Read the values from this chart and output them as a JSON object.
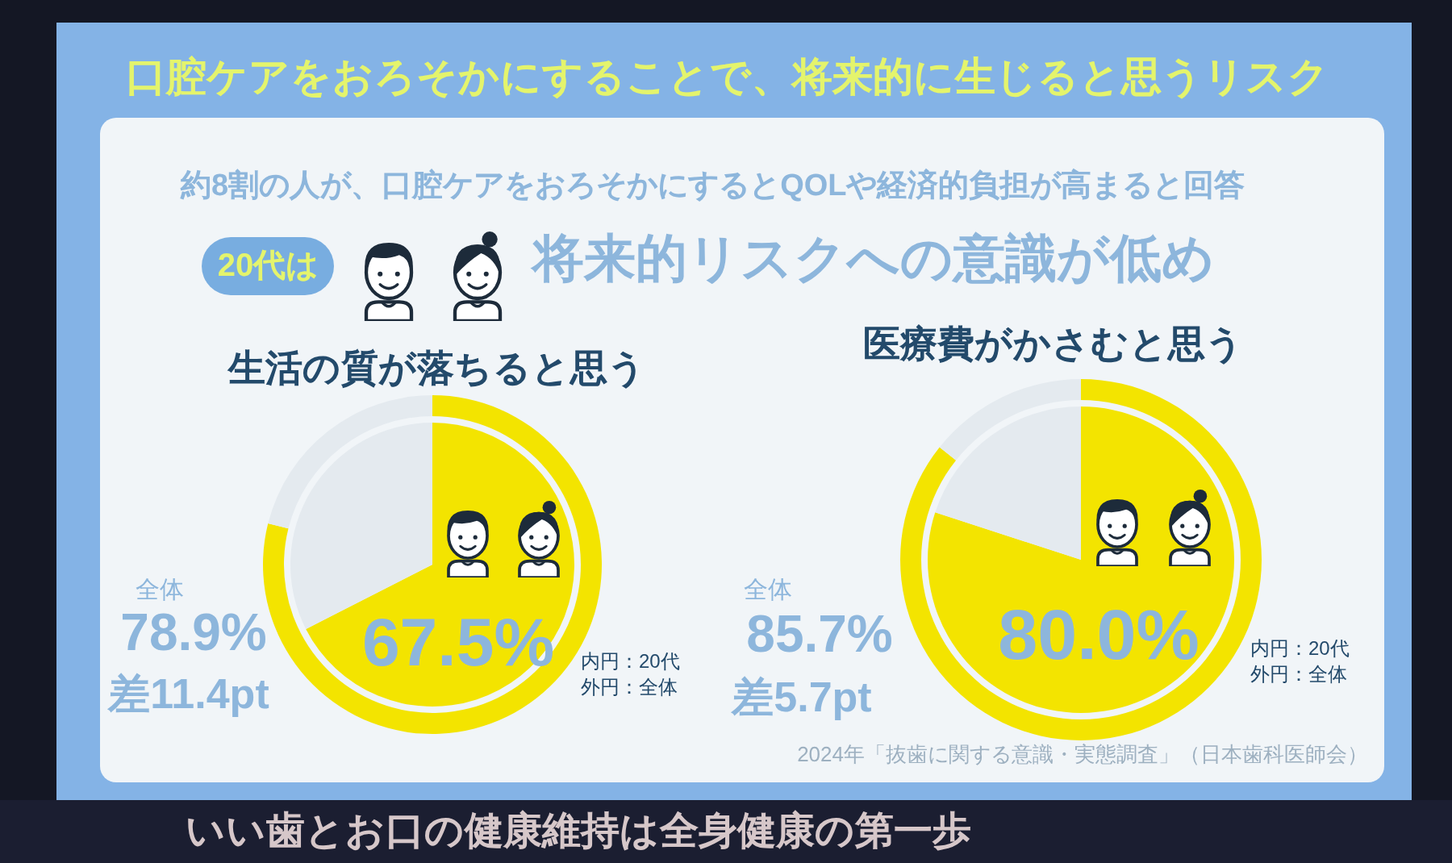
{
  "chart_data": [
    {
      "type": "other",
      "title": "口腔ケアをおろそかにすることで、将来的に生じると思うリスク",
      "subtitle": "約8割の人が、口腔ケアをおろそかにするとQOLや経済的負担が高まると回答",
      "annotations": [
        "20代は",
        "将来的リスクへの意識が低め"
      ]
    },
    {
      "type": "donut",
      "title": "生活の質が落ちると思う",
      "categories": [
        null,
        null
      ],
      "series": [
        {
          "values": [
            67.5,
            32.5
          ],
          "colors": [
            "#f3e400",
            "#e4eaef"
          ],
          "value_labels": [
            "67.5%",
            null
          ]
        },
        {
          "values": [
            78.9,
            21.1
          ],
          "colors": [
            "#f3e400",
            "#e4eaef"
          ],
          "value_labels": [
            "78.9%",
            null
          ]
        }
      ],
      "annotations": [
        "全体",
        "差11.4pt",
        "内円：20代",
        "外円：全体"
      ]
    },
    {
      "type": "donut",
      "title": "医療費がかさむと思う",
      "categories": [
        null,
        null
      ],
      "series": [
        {
          "values": [
            80.0,
            20.0
          ],
          "colors": [
            "#f3e400",
            "#e4eaef"
          ],
          "value_labels": [
            "80.0%",
            null
          ]
        },
        {
          "values": [
            85.7,
            14.3
          ],
          "colors": [
            "#f3e400",
            "#e4eaef"
          ],
          "value_labels": [
            "85.7%",
            null
          ]
        }
      ],
      "annotations": [
        "全体",
        "差5.7pt",
        "内円：20代",
        "外円：全体"
      ]
    },
    {
      "type": "other",
      "annotations": [
        "2024年「抜歯に関する意識・実態調査」（日本歯科医師会）",
        "いい歯とお口の健康維持は全身健康の第一歩"
      ]
    }
  ]
}
